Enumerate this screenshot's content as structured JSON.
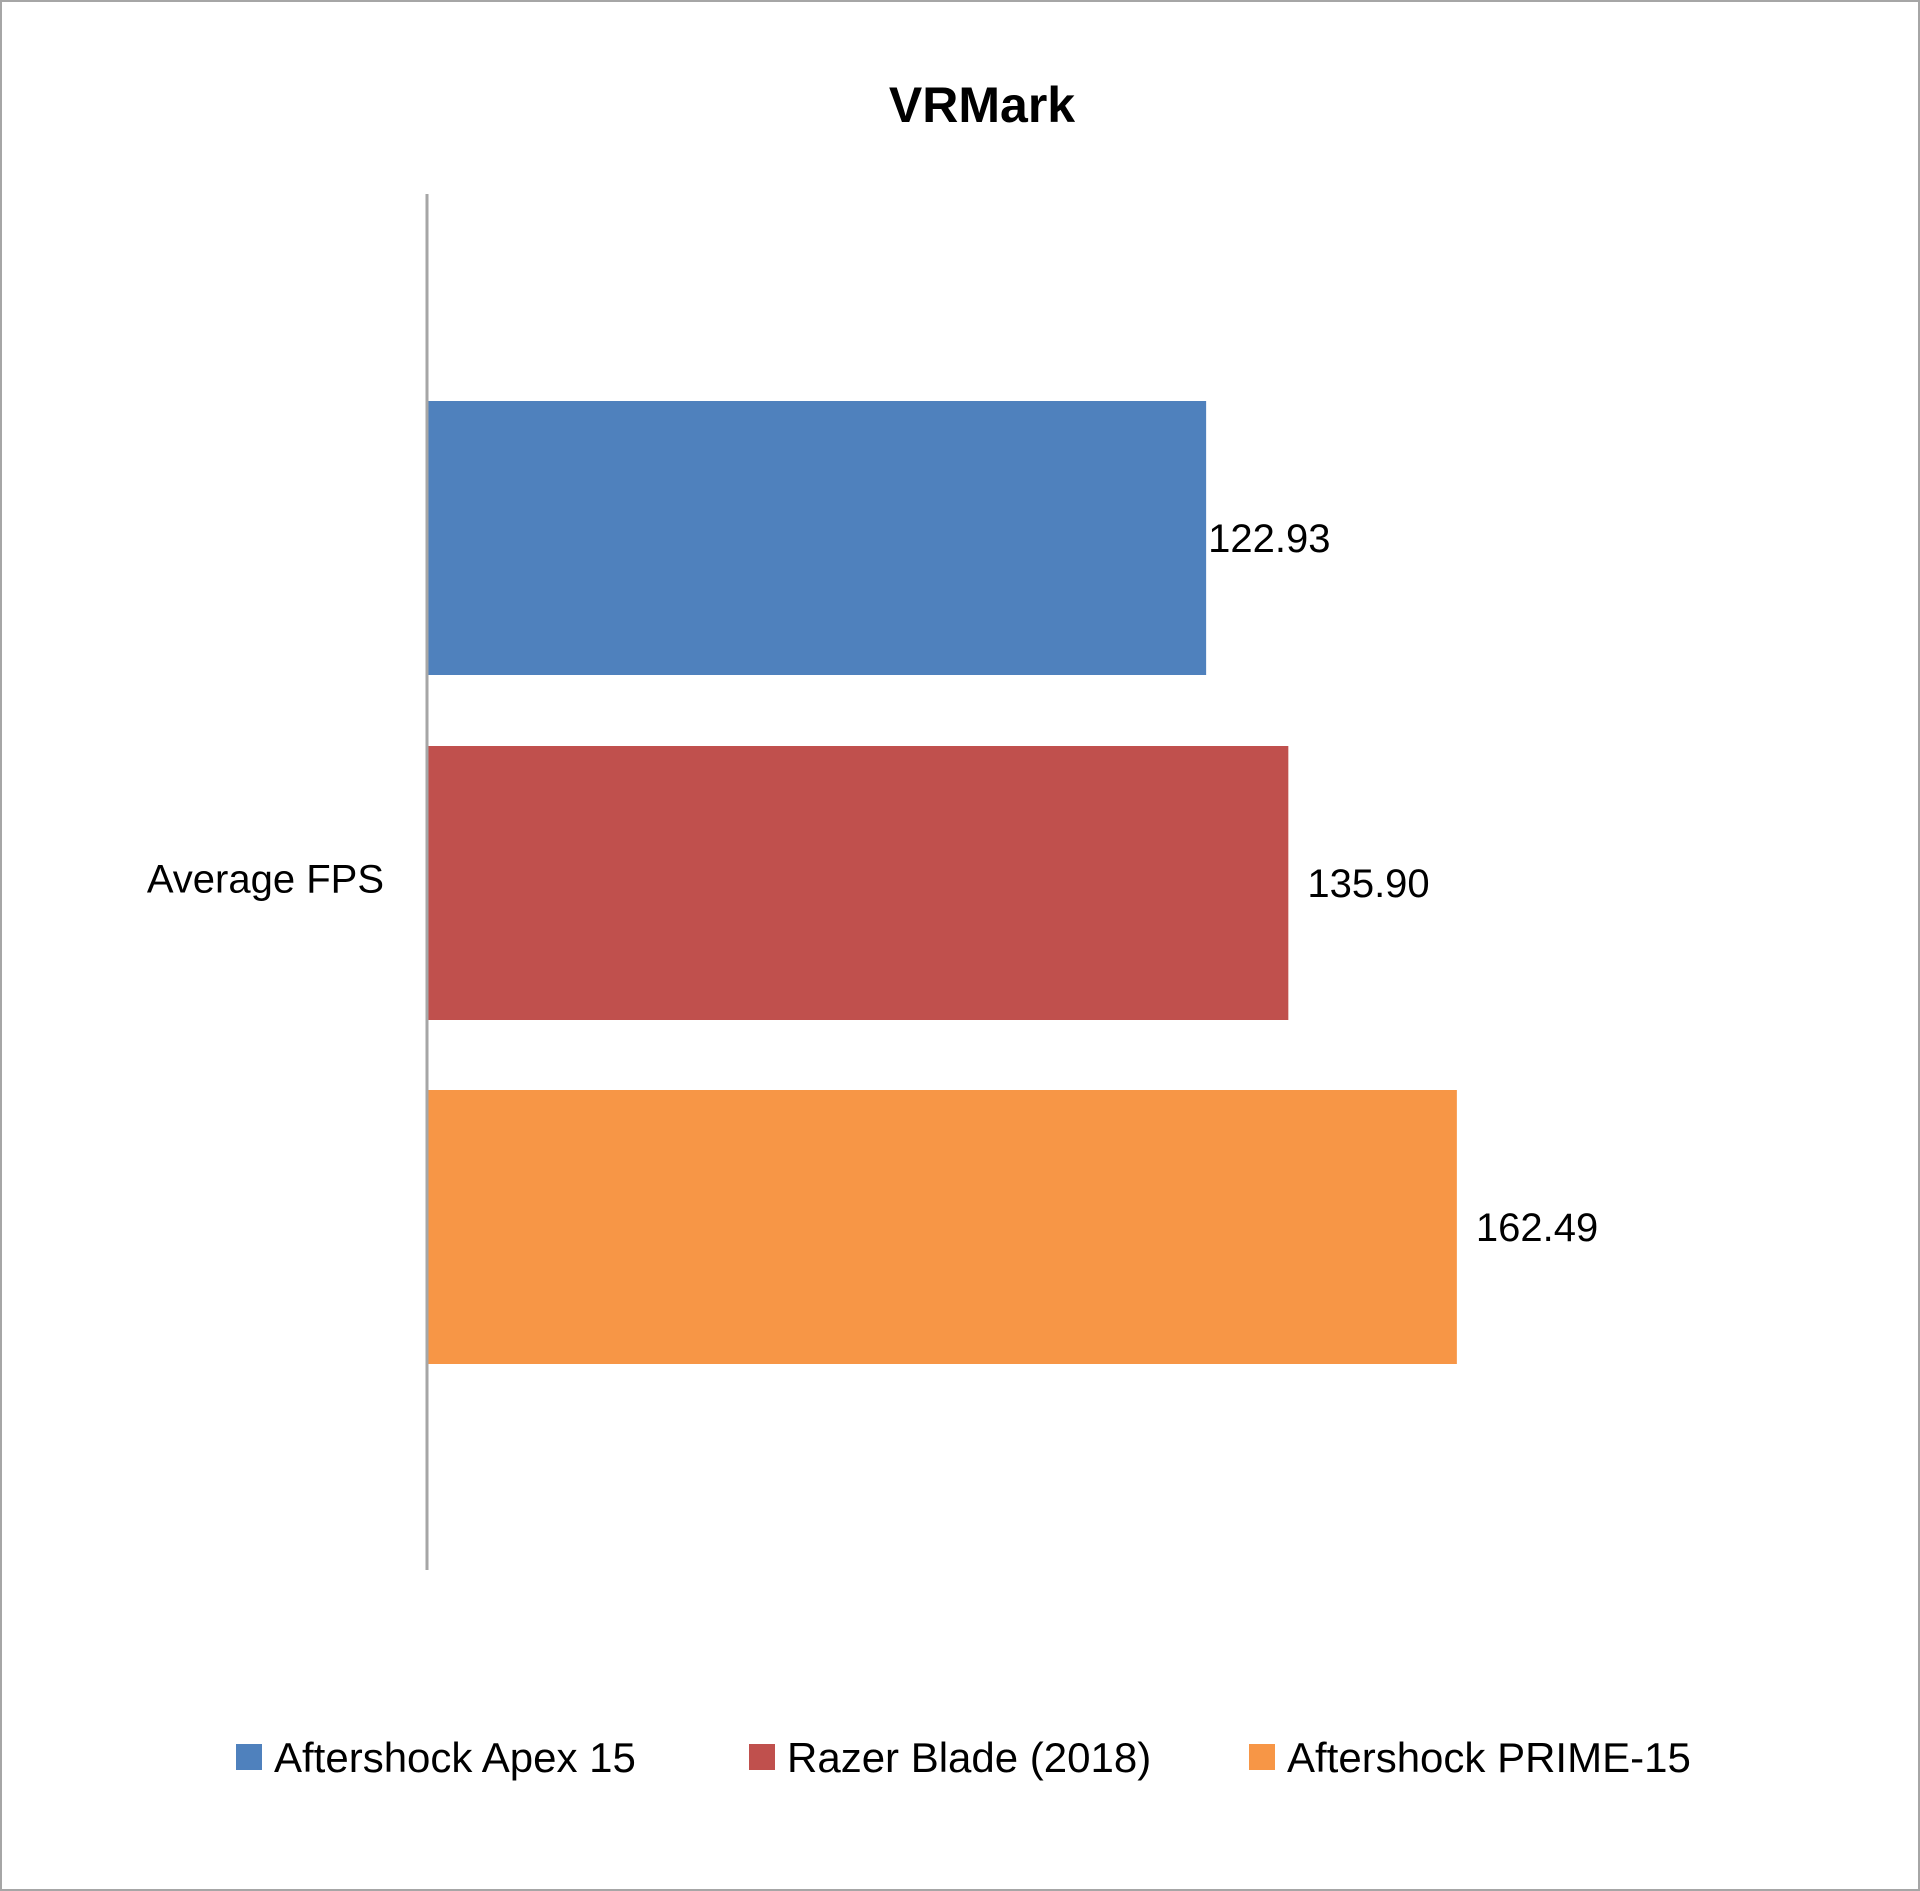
{
  "chart_data": {
    "type": "bar",
    "orientation": "horizontal",
    "title": "VRMark",
    "categories": [
      "Average FPS"
    ],
    "series": [
      {
        "name": "Aftershock Apex 15",
        "values": [
          122.93
        ],
        "label": "122.93",
        "color": "#4f81bd"
      },
      {
        "name": "Razer Blade (2018)",
        "values": [
          135.9
        ],
        "label": "135.90",
        "color": "#c0504d"
      },
      {
        "name": "Aftershock PRIME-15",
        "values": [
          162.49
        ],
        "label": "162.49",
        "color": "#f79646"
      }
    ],
    "xlim": [
      0,
      200
    ],
    "grid": false,
    "legend": "bottom",
    "data_labels": true,
    "axis_color": "#a6a6a6"
  }
}
